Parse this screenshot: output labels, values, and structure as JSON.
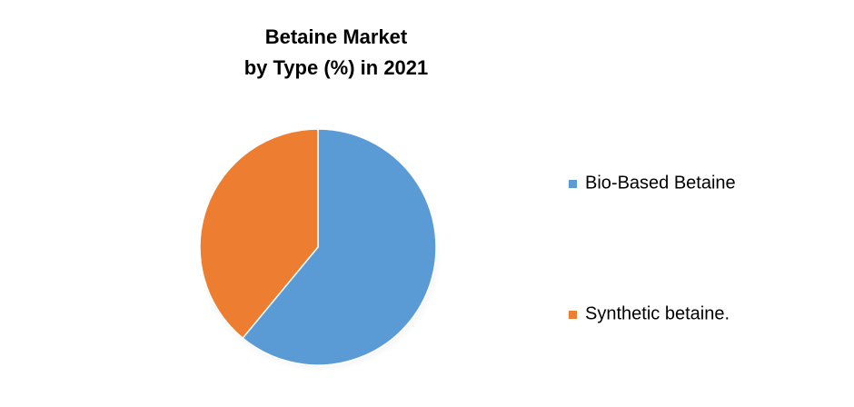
{
  "chart_data": {
    "type": "pie",
    "title": [
      "Betaine  Market",
      "by Type (%) in 2021"
    ],
    "categories": [
      "Bio-Based Betaine",
      "Synthetic betaine."
    ],
    "values": [
      61,
      39
    ],
    "colors": [
      "#5b9bd5",
      "#ed7d31"
    ],
    "legend": "right"
  }
}
